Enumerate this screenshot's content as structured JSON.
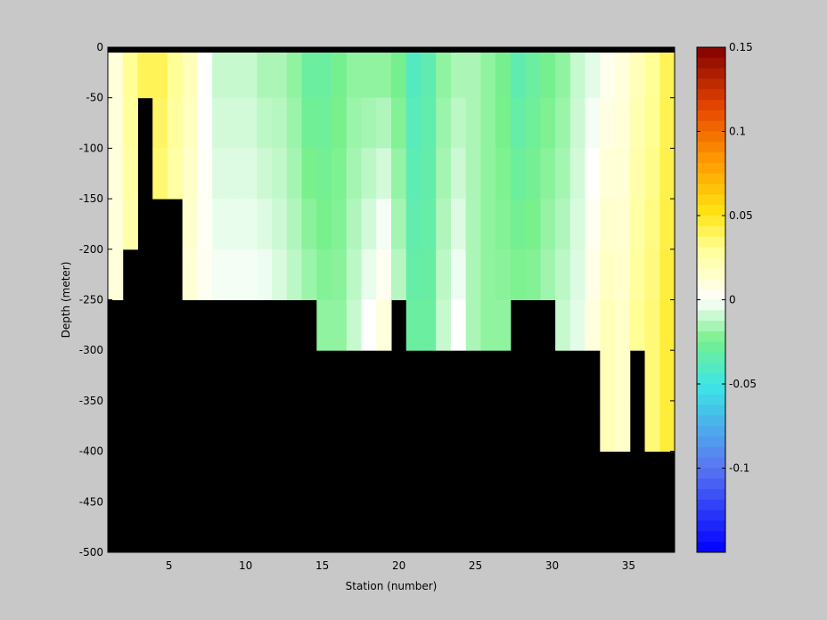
{
  "chart_data": {
    "type": "heatmap",
    "title": "",
    "xlabel": "Station (number)",
    "ylabel": "Depth (meter)",
    "xlim": [
      1,
      38
    ],
    "ylim": [
      -500,
      0
    ],
    "xticks": [
      5,
      10,
      15,
      20,
      25,
      30,
      35
    ],
    "yticks": [
      0,
      -50,
      -100,
      -150,
      -200,
      -250,
      -300,
      -350,
      -400,
      -450,
      -500
    ],
    "colorbar": {
      "range": [
        -0.15,
        0.15
      ],
      "ticks": [
        0.15,
        0.1,
        0.05,
        0,
        -0.05,
        -0.1
      ],
      "tick_labels": [
        "0.15",
        "0.1",
        "0.05",
        "0",
        "-0.05",
        "-0.1"
      ]
    },
    "stations": [
      1,
      2,
      3,
      4,
      5,
      6,
      7,
      8,
      9,
      10,
      11,
      12,
      13,
      14,
      15,
      16,
      17,
      18,
      19,
      20,
      21,
      22,
      23,
      24,
      25,
      26,
      27,
      28,
      29,
      30,
      31,
      32,
      33,
      34,
      35,
      36,
      37,
      38
    ],
    "bottom_depth": [
      -250,
      -200,
      -75,
      -150,
      -150,
      -250,
      -250,
      -250,
      -250,
      -250,
      -250,
      -250,
      -250,
      -250,
      -300,
      -300,
      -300,
      -300,
      -300,
      -250,
      -300,
      -300,
      -300,
      -300,
      -300,
      -300,
      -300,
      -250,
      -250,
      -250,
      -300,
      -300,
      -300,
      -400,
      -400,
      -300,
      -400,
      -400
    ],
    "surface_value": [
      0.01,
      0.03,
      0.04,
      0.04,
      0.03,
      0.02,
      0.0,
      -0.01,
      -0.01,
      -0.01,
      -0.015,
      -0.015,
      -0.02,
      -0.03,
      -0.03,
      -0.025,
      -0.02,
      -0.02,
      -0.02,
      -0.025,
      -0.04,
      -0.035,
      -0.02,
      -0.015,
      -0.015,
      -0.02,
      -0.025,
      -0.035,
      -0.03,
      -0.025,
      -0.02,
      -0.01,
      -0.005,
      0.005,
      0.01,
      0.02,
      0.03,
      0.04
    ],
    "deep_value": [
      0.01,
      0.02,
      0.03,
      0.03,
      0.02,
      0.01,
      0.005,
      0.0,
      0.0,
      0.0,
      0.0,
      -0.005,
      -0.01,
      -0.015,
      -0.02,
      -0.02,
      -0.01,
      0.0,
      0.01,
      -0.01,
      -0.03,
      -0.03,
      -0.01,
      0.0,
      -0.015,
      -0.02,
      -0.02,
      -0.02,
      -0.02,
      -0.015,
      -0.01,
      -0.005,
      0.01,
      0.02,
      0.015,
      0.03,
      0.035,
      0.045
    ]
  }
}
